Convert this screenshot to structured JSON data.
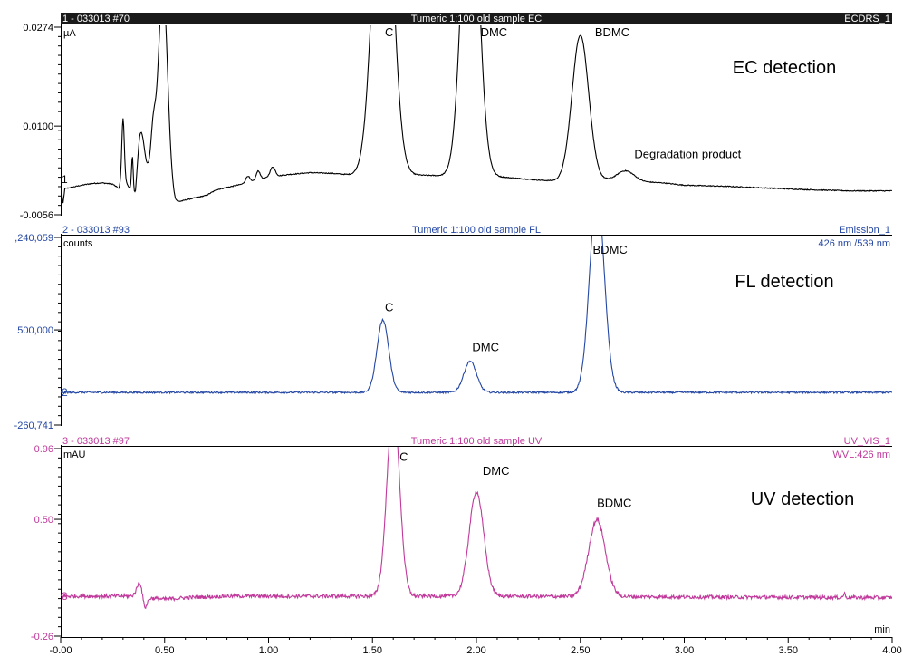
{
  "xaxis": {
    "ticks": [
      0,
      0.5,
      1,
      1.5,
      2,
      2.5,
      3,
      3.5,
      4
    ],
    "tick_labels": [
      "-0.00",
      "0.50",
      "1.00",
      "1.50",
      "2.00",
      "2.50",
      "3.00",
      "3.50",
      "4.00"
    ],
    "unit": "min",
    "range": [
      0,
      4
    ]
  },
  "chart_data": [
    {
      "type": "line",
      "header": {
        "left": "1 - 033013 #70",
        "center": "Tumeric 1:100 old sample EC",
        "right": "ECDRS_1"
      },
      "color": "#000000",
      "header_style": "dark",
      "ylabel": "µA",
      "ylim": [
        -0.0056,
        0.0274
      ],
      "ytick_labels": [
        {
          "value": 0.0274,
          "label": "0.0274"
        },
        {
          "value": 0.01,
          "label": "0.0100"
        },
        {
          "value": -0.0056,
          "label": "-0.0056"
        }
      ],
      "trace_number": "1",
      "trace_number_y": 0.0006,
      "detection_label": "EC detection",
      "baseline": [
        [
          0,
          0.0012
        ],
        [
          0.01,
          -0.004
        ],
        [
          0.02,
          -0.001
        ],
        [
          0.05,
          -0.0008
        ],
        [
          0.1,
          -0.0004
        ],
        [
          0.15,
          -0.0001
        ],
        [
          0.2,
          0.0
        ],
        [
          0.25,
          -0.0002
        ],
        [
          0.28,
          -0.001
        ],
        [
          0.3,
          0.001
        ],
        [
          0.34,
          -0.0015
        ],
        [
          0.36,
          -0.005
        ],
        [
          0.38,
          -0.001
        ],
        [
          0.42,
          0.001
        ],
        [
          0.47,
          0.0
        ],
        [
          0.5,
          -0.0005
        ],
        [
          0.55,
          -0.0035
        ],
        [
          0.6,
          -0.003
        ],
        [
          0.7,
          -0.0022
        ],
        [
          0.75,
          -0.0012
        ],
        [
          0.8,
          -0.0008
        ],
        [
          0.9,
          0.0
        ],
        [
          1.0,
          0.001
        ],
        [
          1.1,
          0.0015
        ],
        [
          1.2,
          0.0018
        ],
        [
          1.3,
          0.0017
        ],
        [
          1.4,
          0.0014
        ],
        [
          1.5,
          0.0014
        ],
        [
          1.6,
          0.0016
        ],
        [
          1.7,
          0.0014
        ],
        [
          1.8,
          0.0013
        ],
        [
          1.9,
          0.0012
        ],
        [
          2.0,
          0.0012
        ],
        [
          2.1,
          0.0011
        ],
        [
          2.2,
          0.0008
        ],
        [
          2.3,
          0.0005
        ],
        [
          2.4,
          0.0003
        ],
        [
          2.5,
          0.0002
        ],
        [
          2.6,
          0.0005
        ],
        [
          2.7,
          0.0006
        ],
        [
          2.8,
          0.0002
        ],
        [
          2.9,
          0.0
        ],
        [
          3.0,
          -0.0004
        ],
        [
          3.2,
          -0.0006
        ],
        [
          3.4,
          -0.0009
        ],
        [
          3.6,
          -0.0012
        ],
        [
          3.8,
          -0.0014
        ],
        [
          4.0,
          -0.0014
        ]
      ],
      "peaks": [
        {
          "x": 0.3,
          "height": 0.0104,
          "width": 0.006
        },
        {
          "x": 0.345,
          "height": 0.0062,
          "width": 0.004
        },
        {
          "x": 0.385,
          "height": 0.0096,
          "width": 0.018
        },
        {
          "x": 0.445,
          "height": 0.008,
          "width": 0.012
        },
        {
          "x": 0.492,
          "height": 0.035,
          "width": 0.022
        },
        {
          "x": 0.9,
          "height": 0.0012,
          "width": 0.01
        },
        {
          "x": 0.95,
          "height": 0.0016,
          "width": 0.01
        },
        {
          "x": 1.02,
          "height": 0.0017,
          "width": 0.012
        },
        {
          "x": 1.55,
          "height": 0.065,
          "width": 0.045
        },
        {
          "x": 1.97,
          "height": 0.06,
          "width": 0.04
        },
        {
          "x": 2.5,
          "height": 0.0258,
          "width": 0.04
        },
        {
          "x": 2.72,
          "height": 0.0016,
          "width": 0.04
        }
      ],
      "noise": 8e-05,
      "annotations": [
        {
          "text": "C",
          "x": 1.56,
          "y": 0.0258
        },
        {
          "text": "DMC",
          "x": 2.02,
          "y": 0.0258
        },
        {
          "text": "BDMC",
          "x": 2.57,
          "y": 0.0258
        },
        {
          "text": "Degradation product",
          "x": 2.76,
          "y": 0.0044
        }
      ]
    },
    {
      "type": "line",
      "header": {
        "left": "2 - 033013 #93",
        "center": "Tumeric 1:100 old sample FL",
        "right": "Emission_1"
      },
      "color": "#2447a3",
      "header_style": "light",
      "ylabel": "counts",
      "ylabel_right": "426 nm /539 nm",
      "ylim": [
        -260741,
        1240059
      ],
      "ytick_labels": [
        {
          "value": 1240059,
          "label": ",240,059"
        },
        {
          "value": 500000,
          "label": "500,000"
        },
        {
          "value": -260741,
          "label": "-260,741"
        }
      ],
      "trace_number": "2",
      "trace_number_y": 0,
      "detection_label": "FL detection",
      "baseline": [
        [
          0,
          0
        ],
        [
          1,
          0
        ],
        [
          2,
          0
        ],
        [
          3,
          0
        ],
        [
          4,
          0
        ]
      ],
      "peaks": [
        {
          "x": 1.55,
          "height": 580000,
          "width": 0.028
        },
        {
          "x": 1.97,
          "height": 250000,
          "width": 0.03
        },
        {
          "x": 2.58,
          "height": 1600000,
          "width": 0.035
        }
      ],
      "noise": 7000,
      "annotations": [
        {
          "text": "C",
          "x": 1.56,
          "y": 650000
        },
        {
          "text": "DMC",
          "x": 1.98,
          "y": 330000
        },
        {
          "text": "BDMC",
          "x": 2.56,
          "y": 1110000
        }
      ]
    },
    {
      "type": "line",
      "header": {
        "left": "3 - 033013 #97",
        "center": "Tumeric 1:100 old sample UV",
        "right": "UV_VIS_1"
      },
      "color": "#c0399b",
      "header_style": "light",
      "ylabel": "mAU",
      "ylabel_right": "WVL:426 nm",
      "ylim": [
        -0.26,
        0.96
      ],
      "ytick_labels": [
        {
          "value": 0.96,
          "label": "0.96"
        },
        {
          "value": 0.5,
          "label": "0.50"
        },
        {
          "value": -0.26,
          "label": "-0.26"
        }
      ],
      "trace_number": "3",
      "trace_number_y": 0.0,
      "detection_label": "UV detection",
      "baseline": [
        [
          0,
          0
        ],
        [
          0.34,
          0
        ],
        [
          0.355,
          0.01
        ],
        [
          0.41,
          -0.01
        ],
        [
          0.5,
          -0.02
        ],
        [
          0.6,
          -0.01
        ],
        [
          0.8,
          0.0
        ],
        [
          1.5,
          0.0
        ],
        [
          2.0,
          0.0
        ],
        [
          3.0,
          -0.005
        ],
        [
          4.0,
          -0.01
        ]
      ],
      "peaks": [
        {
          "x": 0.38,
          "height": 0.09,
          "width": 0.012
        },
        {
          "x": 0.405,
          "height": -0.07,
          "width": 0.01
        },
        {
          "x": 1.6,
          "height": 1.25,
          "width": 0.03
        },
        {
          "x": 2.0,
          "height": 0.68,
          "width": 0.035
        },
        {
          "x": 2.58,
          "height": 0.5,
          "width": 0.04
        },
        {
          "x": 3.77,
          "height": 0.025,
          "width": 0.005
        }
      ],
      "noise": 0.012,
      "annotations": [
        {
          "text": "C",
          "x": 1.63,
          "y": 0.88
        },
        {
          "text": "DMC",
          "x": 2.03,
          "y": 0.79
        },
        {
          "text": "BDMC",
          "x": 2.58,
          "y": 0.58
        }
      ]
    }
  ]
}
